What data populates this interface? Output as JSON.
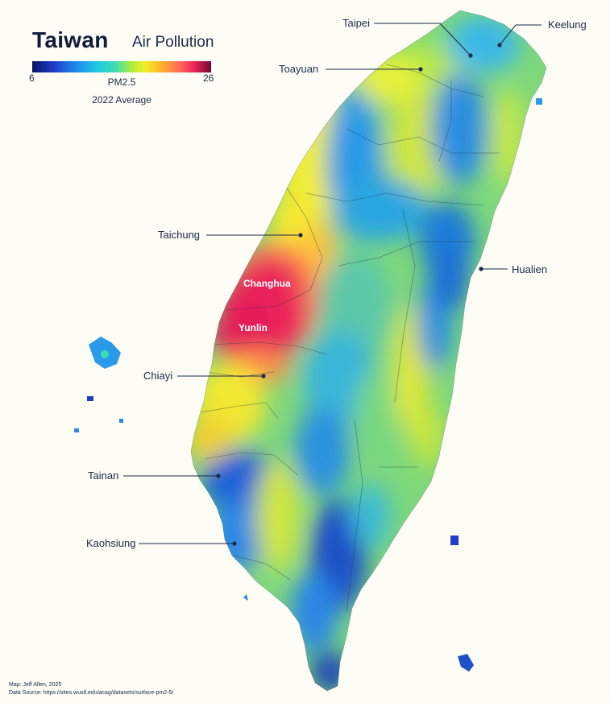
{
  "header": {
    "title": "Taiwan",
    "subtitle": "Air Pollution"
  },
  "legend": {
    "min_label": "6",
    "max_label": "26",
    "variable_label": "PM2.5",
    "period_label": "2022 Average",
    "colors": [
      "#0a1466",
      "#1e3cc8",
      "#1e8cf0",
      "#1ec8e6",
      "#3cdcb4",
      "#b4ec3c",
      "#f0f028",
      "#ffb428",
      "#ff6e5a",
      "#f0285a",
      "#6e0a32"
    ]
  },
  "cities": [
    {
      "name": "Taipei"
    },
    {
      "name": "Keelung"
    },
    {
      "name": "Toayuan"
    },
    {
      "name": "Taichung"
    },
    {
      "name": "Hualien"
    },
    {
      "name": "Chiayi"
    },
    {
      "name": "Tainan"
    },
    {
      "name": "Kaohsiung"
    }
  ],
  "regions": [
    {
      "name": "Changhua"
    },
    {
      "name": "Yunlin"
    }
  ],
  "credits": {
    "author": "Map: Jeff Allen, 2025",
    "source": "Data Source: https://sites.wustl.edu/acag/datasets/surface-pm2-5/"
  },
  "colors": {
    "background": "#fdfcf5",
    "text": "#1a2a4a",
    "low": "#1e3cc8",
    "high": "#f0285a"
  }
}
